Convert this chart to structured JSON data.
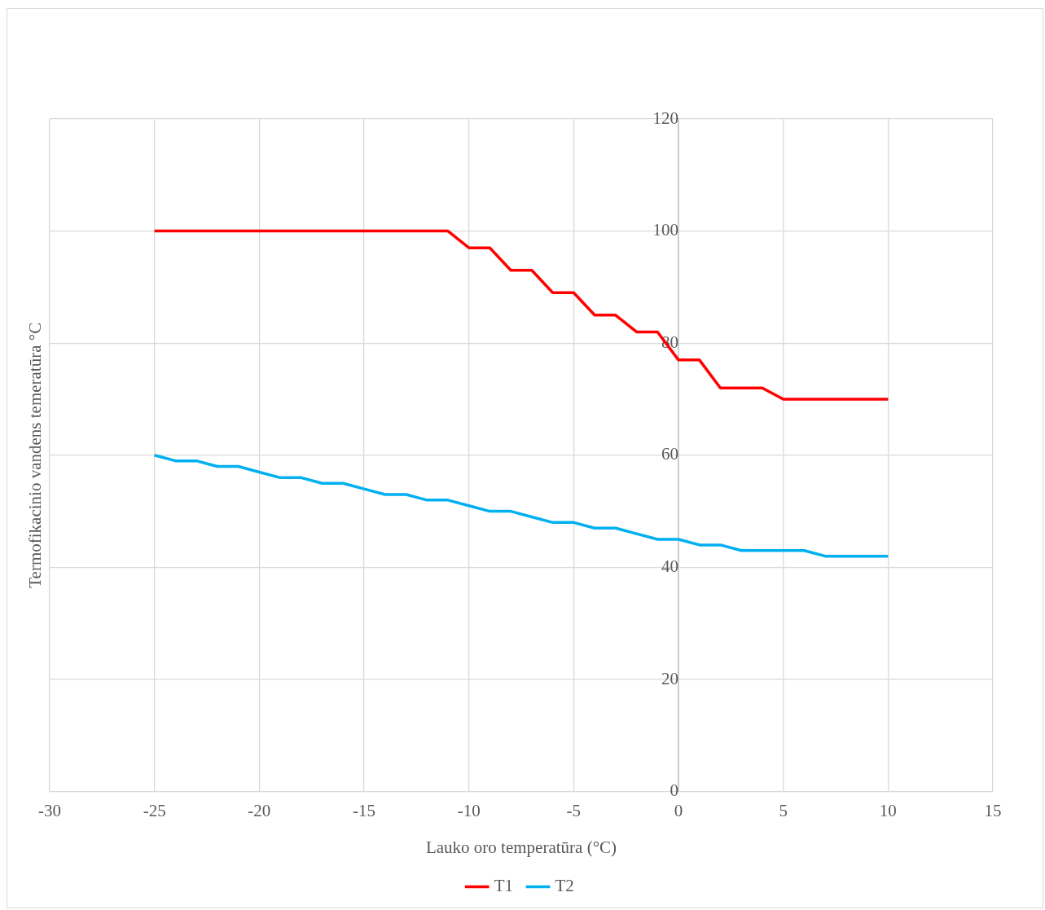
{
  "chart_data": {
    "type": "line",
    "xlabel": "Lauko oro temperatūra (°C)",
    "ylabel": "Termofikacinio vandens temeratūra °C",
    "x": [
      -25,
      -24,
      -23,
      -22,
      -21,
      -20,
      -19,
      -18,
      -17,
      -16,
      -15,
      -14,
      -13,
      -12,
      -11,
      -10,
      -9,
      -8,
      -7,
      -6,
      -5,
      -4,
      -3,
      -2,
      -1,
      0,
      1,
      2,
      3,
      4,
      5,
      6,
      7,
      8,
      9,
      10
    ],
    "series": [
      {
        "name": "T1",
        "color": "#ff0000",
        "values": [
          100,
          100,
          100,
          100,
          100,
          100,
          100,
          100,
          100,
          100,
          100,
          100,
          100,
          100,
          100,
          97,
          97,
          93,
          93,
          89,
          89,
          85,
          85,
          82,
          82,
          77,
          77,
          72,
          72,
          72,
          70,
          70,
          70,
          70,
          70,
          70
        ]
      },
      {
        "name": "T2",
        "color": "#00b0f0",
        "values": [
          60,
          59,
          59,
          58,
          58,
          57,
          56,
          56,
          55,
          55,
          54,
          53,
          53,
          52,
          52,
          51,
          50,
          50,
          49,
          48,
          48,
          47,
          47,
          46,
          45,
          45,
          44,
          44,
          43,
          43,
          43,
          43,
          42,
          42,
          42,
          42
        ]
      }
    ],
    "xlim": [
      -30,
      15
    ],
    "xticks": [
      -30,
      -25,
      -20,
      -15,
      -10,
      -5,
      0,
      5,
      10,
      15
    ],
    "ylim": [
      0,
      120
    ],
    "yticks": [
      0,
      20,
      40,
      60,
      80,
      100,
      120
    ],
    "grid": true,
    "legend": "bottom",
    "marker": "none",
    "line_style": "solid"
  }
}
